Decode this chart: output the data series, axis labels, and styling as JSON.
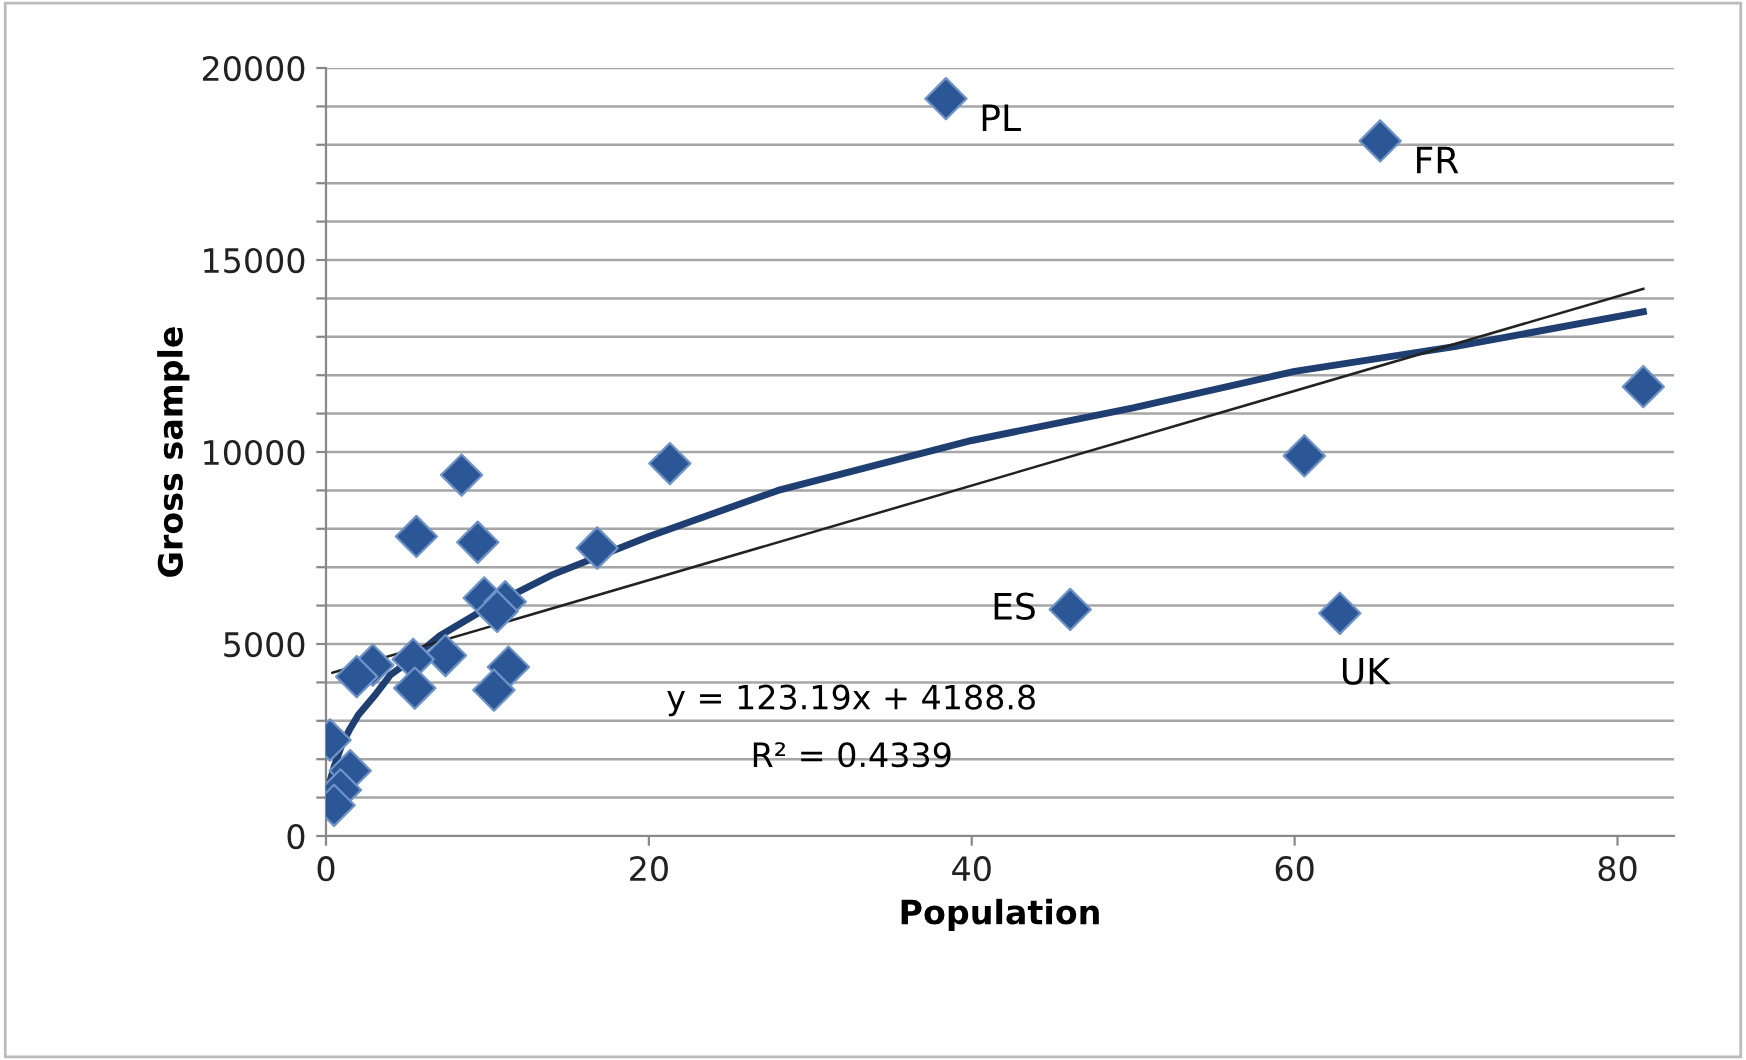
{
  "chart_data": {
    "type": "scatter",
    "xlabel": "Population",
    "ylabel": "Gross sample",
    "xlim": [
      0,
      83.5
    ],
    "ylim": [
      0,
      20000
    ],
    "xticks": [
      0,
      20,
      40,
      60,
      80
    ],
    "yticks": [
      0,
      {
        "value": 1000,
        "label": null
      },
      {
        "value": 2000,
        "label": null
      },
      {
        "value": 3000,
        "label": null
      },
      {
        "value": 4000,
        "label": null
      },
      5000,
      {
        "value": 6000,
        "label": null
      },
      {
        "value": 7000,
        "label": null
      },
      {
        "value": 8000,
        "label": null
      },
      {
        "value": 9000,
        "label": null
      },
      10000,
      {
        "value": 11000,
        "label": null
      },
      {
        "value": 12000,
        "label": null
      },
      {
        "value": 13000,
        "label": null
      },
      {
        "value": 14000,
        "label": null
      },
      15000,
      {
        "value": 16000,
        "label": null
      },
      {
        "value": 17000,
        "label": null
      },
      {
        "value": 18000,
        "label": null
      },
      {
        "value": 19000,
        "label": null
      },
      20000
    ],
    "grid": "y",
    "marker": "diamond",
    "series": [
      {
        "color": "#2b5797",
        "x": [
          38.4,
          65.3,
          81.6,
          60.6,
          46.1,
          62.8,
          21.3,
          8.4,
          5.6,
          9.4,
          16.8,
          9.8,
          11.1,
          10.6,
          7.4,
          5.4,
          2.9,
          1.9,
          11.3,
          10.4,
          5.5,
          0.25,
          1.5,
          0.9,
          0.5
        ],
        "values": [
          19200,
          18100,
          11700,
          9900,
          5900,
          5800,
          9700,
          9400,
          7800,
          7650,
          7500,
          6200,
          6100,
          5850,
          4700,
          4600,
          4450,
          4150,
          4400,
          3800,
          3850,
          2500,
          1700,
          1200,
          800
        ]
      },
      {
        "type": "line",
        "color": "#1f3f73",
        "line_style": "solid",
        "marker": "none",
        "x": [
          0.3,
          0.5,
          0.75,
          1,
          1.5,
          2,
          3,
          4,
          5,
          7,
          10,
          14,
          20,
          28,
          40,
          50,
          60,
          70,
          81.6
        ],
        "values": [
          1500,
          1800,
          2100,
          2400,
          2800,
          3150,
          3650,
          4200,
          4500,
          5200,
          5950,
          6800,
          7800,
          9000,
          10300,
          11150,
          12100,
          12750,
          13650
        ]
      },
      {
        "type": "line",
        "color": "#222222",
        "line_style": "solid",
        "marker": "none",
        "x": [
          0.4,
          81.6
        ],
        "values": [
          4250,
          14250
        ]
      }
    ],
    "annotations": [
      {
        "text": "PL",
        "x": 38.4,
        "y": 19200
      },
      {
        "text": "FR",
        "x": 65.3,
        "y": 18100
      },
      {
        "text": "ES",
        "x": 46.1,
        "y": 5900
      },
      {
        "text": "UK",
        "x": 62.8,
        "y": 5800
      },
      "y = 123.19x + 4188.8",
      "R² = 0.4339"
    ]
  }
}
